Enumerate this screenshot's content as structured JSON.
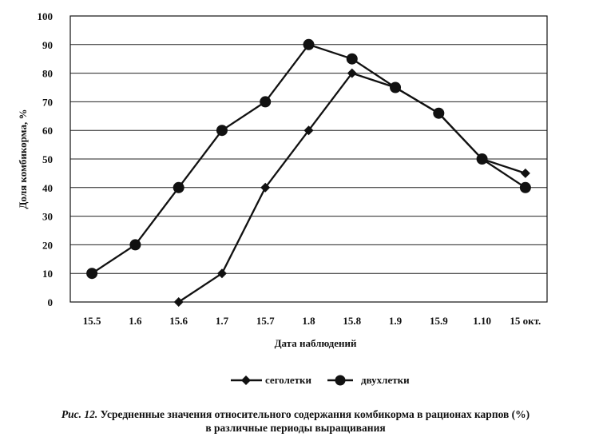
{
  "chart_data": {
    "type": "line",
    "categories": [
      "15.5",
      "1.6",
      "15.6",
      "1.7",
      "15.7",
      "1.8",
      "15.8",
      "1.9",
      "15.9",
      "1.10",
      "15 окт."
    ],
    "xlabel": "Дата наблюдений",
    "ylabel": "Доля комбикорма, %",
    "ylim": [
      0,
      100
    ],
    "yticks": [
      "0",
      "10",
      "20",
      "30",
      "40",
      "50",
      "60",
      "70",
      "80",
      "90",
      "100"
    ],
    "grid": true,
    "legend_position": "bottom",
    "series": [
      {
        "name": "сеголетки",
        "marker": "diamond",
        "values": [
          null,
          null,
          0,
          10,
          40,
          60,
          80,
          75,
          66,
          50,
          45
        ]
      },
      {
        "name": "двухлетки",
        "marker": "circle",
        "values": [
          10,
          20,
          40,
          60,
          70,
          90,
          85,
          75,
          66,
          50,
          40
        ]
      }
    ]
  },
  "caption": {
    "figure_label": "Рис. 12.",
    "line1": "Усредненные значения относительного содержания комбикорма в рационах карпов (%)",
    "line2": "в различные периоды выращивания"
  }
}
